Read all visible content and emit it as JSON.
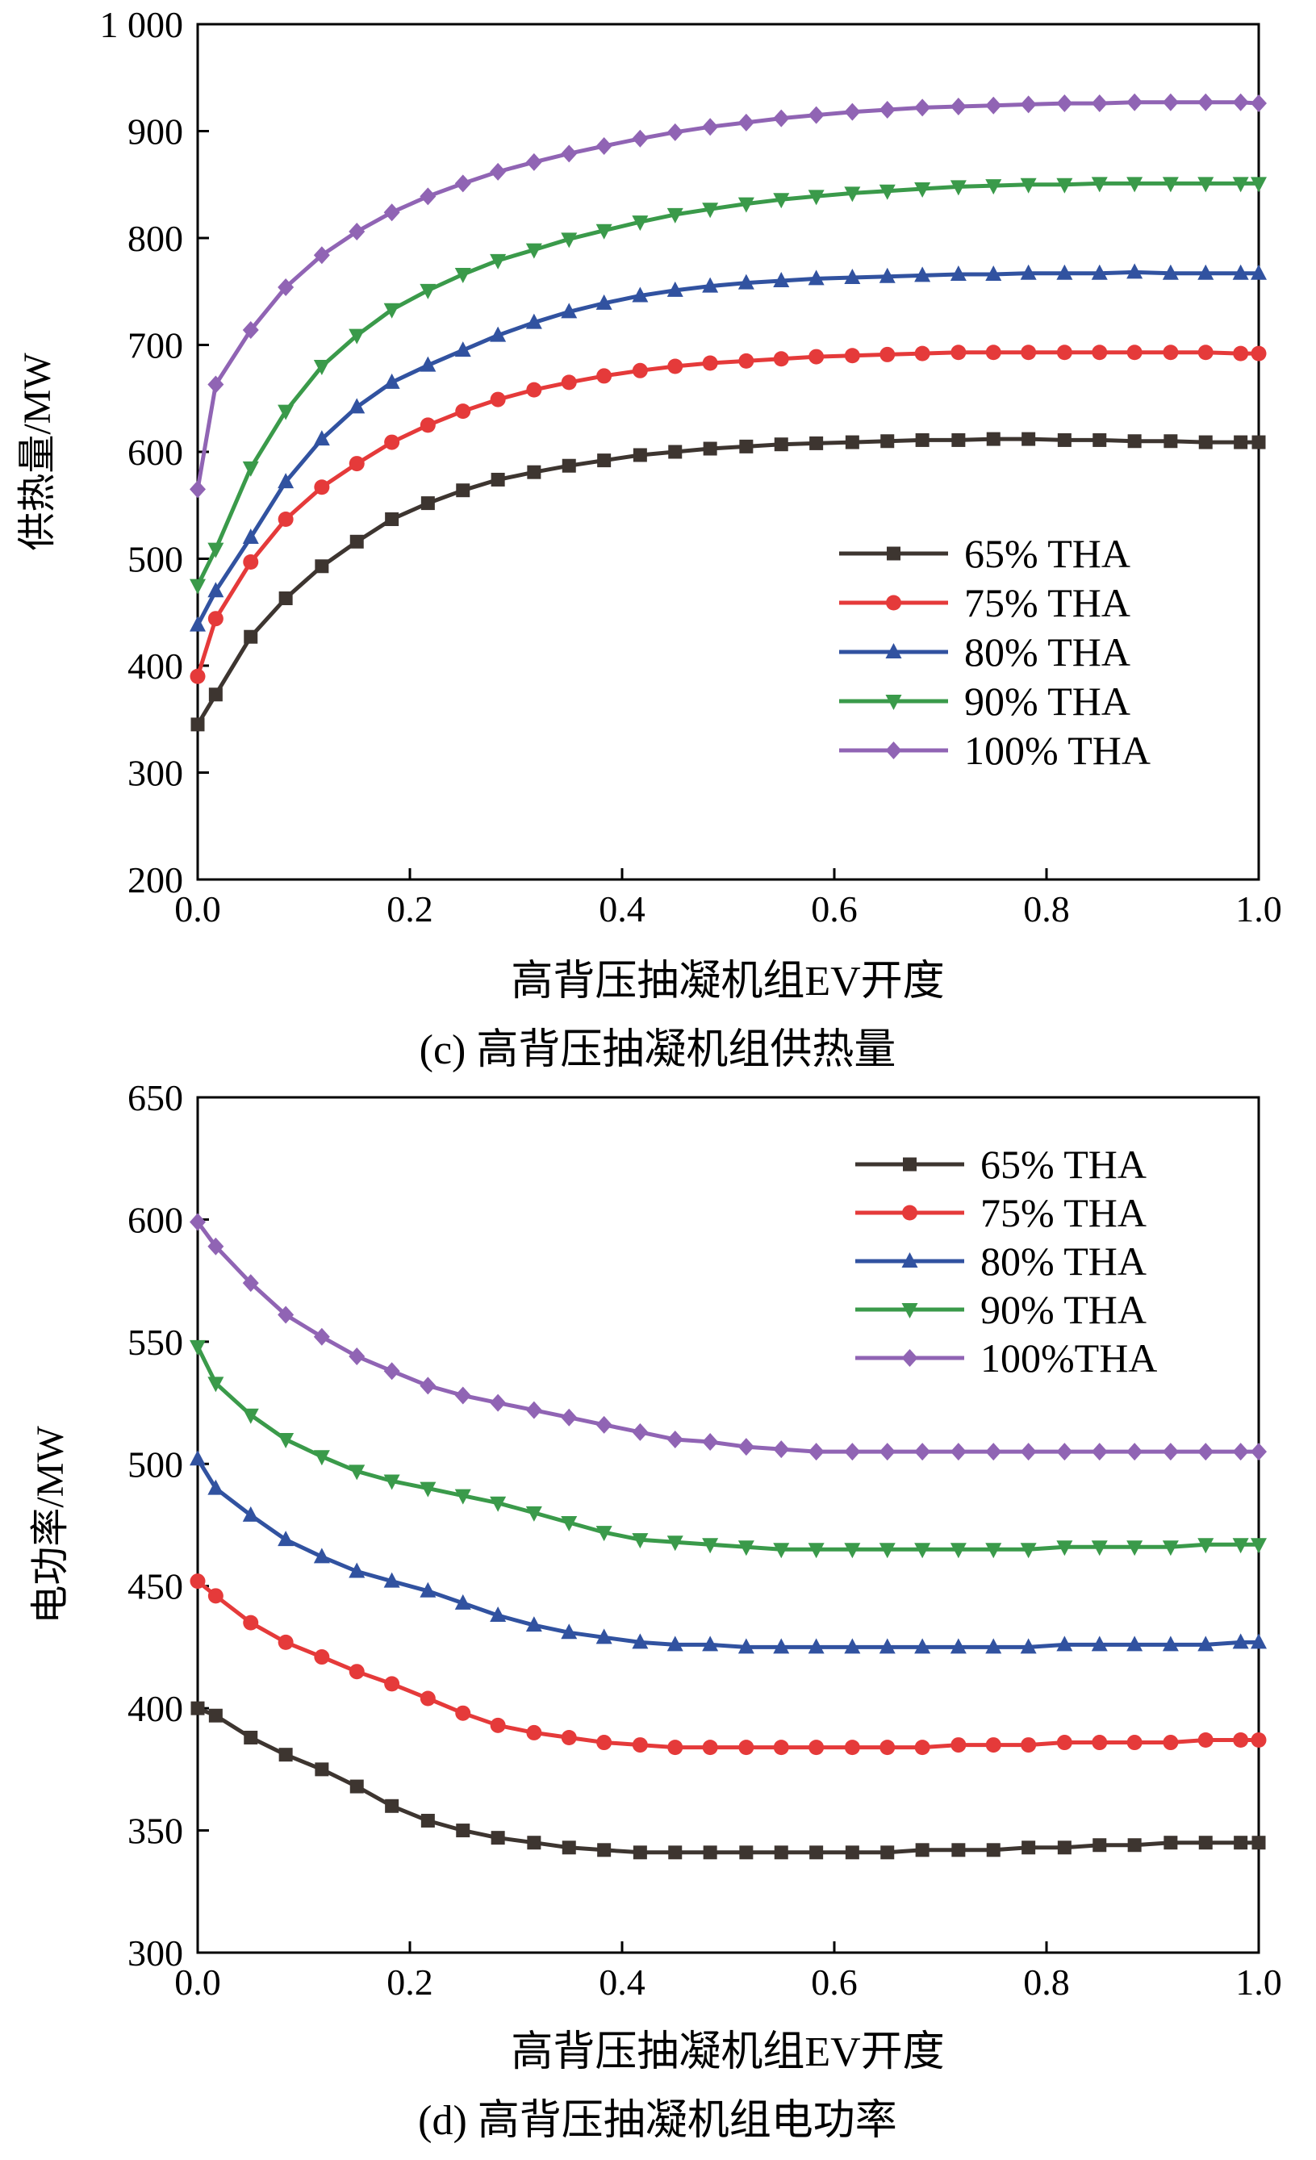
{
  "colors": {
    "65": "#3d3530",
    "75": "#e53a3a",
    "80": "#3152a0",
    "90": "#3a9a4a",
    "100": "#9064b4"
  },
  "chart_data": [
    {
      "id": "c",
      "type": "line",
      "caption": "(c) 高背压抽凝机组供热量",
      "xlabel": "高背压抽凝机组EV开度",
      "ylabel": "供热量/MW",
      "xlim": [
        0.0,
        1.0
      ],
      "ylim": [
        200,
        1000
      ],
      "xticks": [
        "0.0",
        "0.2",
        "0.4",
        "0.6",
        "0.8",
        "1.0"
      ],
      "yticks": [
        "200",
        "300",
        "400",
        "500",
        "600",
        "700",
        "800",
        "900",
        "1 000"
      ],
      "legend_position": "middle-right",
      "x": [
        0.0,
        0.017,
        0.05,
        0.083,
        0.117,
        0.15,
        0.183,
        0.217,
        0.25,
        0.283,
        0.317,
        0.35,
        0.383,
        0.417,
        0.45,
        0.483,
        0.517,
        0.55,
        0.583,
        0.617,
        0.65,
        0.683,
        0.717,
        0.75,
        0.783,
        0.817,
        0.85,
        0.883,
        0.917,
        0.95,
        0.983,
        1.0
      ],
      "series": [
        {
          "name": "65% THA",
          "key": "65",
          "marker": "square",
          "values": [
            345,
            373,
            427,
            463,
            493,
            516,
            537,
            552,
            564,
            574,
            581,
            587,
            592,
            597,
            600,
            603,
            605,
            607,
            608,
            609,
            610,
            611,
            611,
            612,
            612,
            611,
            611,
            610,
            610,
            609,
            609,
            609
          ]
        },
        {
          "name": "75% THA",
          "key": "75",
          "marker": "circle",
          "values": [
            390,
            444,
            497,
            537,
            567,
            589,
            609,
            625,
            638,
            649,
            658,
            665,
            671,
            676,
            680,
            683,
            685,
            687,
            689,
            690,
            691,
            692,
            693,
            693,
            693,
            693,
            693,
            693,
            693,
            693,
            692,
            692
          ]
        },
        {
          "name": "80% THA",
          "key": "80",
          "marker": "triangle-up",
          "values": [
            438,
            470,
            520,
            572,
            612,
            642,
            665,
            681,
            695,
            709,
            721,
            731,
            739,
            746,
            751,
            755,
            758,
            760,
            762,
            763,
            764,
            765,
            766,
            766,
            767,
            767,
            767,
            768,
            767,
            767,
            767,
            767
          ]
        },
        {
          "name": "90% THA",
          "key": "90",
          "marker": "triangle-down",
          "values": [
            475,
            509,
            585,
            638,
            680,
            709,
            733,
            751,
            766,
            779,
            789,
            799,
            807,
            815,
            822,
            827,
            832,
            836,
            839,
            842,
            844,
            846,
            848,
            849,
            850,
            850,
            851,
            851,
            851,
            851,
            851,
            851
          ]
        },
        {
          "name": "100% THA",
          "key": "100",
          "marker": "diamond",
          "values": [
            565,
            663,
            714,
            754,
            784,
            806,
            824,
            839,
            851,
            862,
            871,
            879,
            886,
            893,
            899,
            904,
            908,
            912,
            915,
            918,
            920,
            922,
            923,
            924,
            925,
            926,
            926,
            927,
            927,
            927,
            927,
            926
          ]
        }
      ]
    },
    {
      "id": "d",
      "type": "line",
      "caption": "(d) 高背压抽凝机组电功率",
      "xlabel": "高背压抽凝机组EV开度",
      "ylabel": "电功率/MW",
      "xlim": [
        0.0,
        1.0
      ],
      "ylim": [
        300,
        650
      ],
      "xticks": [
        "0.0",
        "0.2",
        "0.4",
        "0.6",
        "0.8",
        "1.0"
      ],
      "yticks": [
        "300",
        "350",
        "400",
        "450",
        "500",
        "550",
        "600",
        "650"
      ],
      "legend_position": "top-right",
      "x": [
        0.0,
        0.017,
        0.05,
        0.083,
        0.117,
        0.15,
        0.183,
        0.217,
        0.25,
        0.283,
        0.317,
        0.35,
        0.383,
        0.417,
        0.45,
        0.483,
        0.517,
        0.55,
        0.583,
        0.617,
        0.65,
        0.683,
        0.717,
        0.75,
        0.783,
        0.817,
        0.85,
        0.883,
        0.917,
        0.95,
        0.983,
        1.0
      ],
      "series": [
        {
          "name": "65% THA",
          "key": "65",
          "marker": "square",
          "values": [
            400,
            397,
            388,
            381,
            375,
            368,
            360,
            354,
            350,
            347,
            345,
            343,
            342,
            341,
            341,
            341,
            341,
            341,
            341,
            341,
            341,
            342,
            342,
            342,
            343,
            343,
            344,
            344,
            345,
            345,
            345,
            345
          ]
        },
        {
          "name": "75% THA",
          "key": "75",
          "marker": "circle",
          "values": [
            452,
            446,
            435,
            427,
            421,
            415,
            410,
            404,
            398,
            393,
            390,
            388,
            386,
            385,
            384,
            384,
            384,
            384,
            384,
            384,
            384,
            384,
            385,
            385,
            385,
            386,
            386,
            386,
            386,
            387,
            387,
            387
          ]
        },
        {
          "name": "80% THA",
          "key": "80",
          "marker": "triangle-up",
          "values": [
            502,
            490,
            479,
            469,
            462,
            456,
            452,
            448,
            443,
            438,
            434,
            431,
            429,
            427,
            426,
            426,
            425,
            425,
            425,
            425,
            425,
            425,
            425,
            425,
            425,
            426,
            426,
            426,
            426,
            426,
            427,
            427
          ]
        },
        {
          "name": "90% THA",
          "key": "90",
          "marker": "triangle-down",
          "values": [
            548,
            533,
            520,
            510,
            503,
            497,
            493,
            490,
            487,
            484,
            480,
            476,
            472,
            469,
            468,
            467,
            466,
            465,
            465,
            465,
            465,
            465,
            465,
            465,
            465,
            466,
            466,
            466,
            466,
            467,
            467,
            467
          ]
        },
        {
          "name": "100%THA",
          "key": "100",
          "marker": "diamond",
          "values": [
            599,
            589,
            574,
            561,
            552,
            544,
            538,
            532,
            528,
            525,
            522,
            519,
            516,
            513,
            510,
            509,
            507,
            506,
            505,
            505,
            505,
            505,
            505,
            505,
            505,
            505,
            505,
            505,
            505,
            505,
            505,
            505
          ]
        }
      ]
    }
  ]
}
